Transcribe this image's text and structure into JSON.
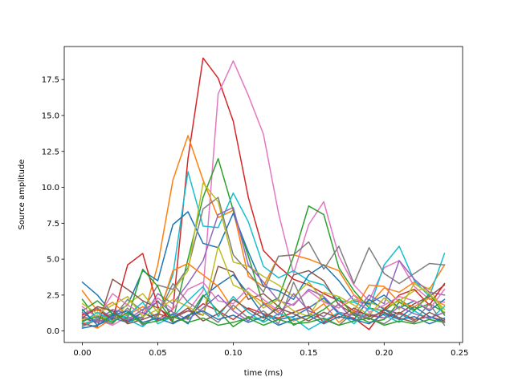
{
  "chart_data": {
    "type": "line",
    "title": "",
    "xlabel": "time (ms)",
    "ylabel": "Source amplitude",
    "xlim": [
      -0.012,
      0.252
    ],
    "ylim": [
      -0.8,
      19.8
    ],
    "grid": false,
    "legend": "none",
    "x_ticks": [
      {
        "value": 0.0,
        "label": "0.00"
      },
      {
        "value": 0.05,
        "label": "0.05"
      },
      {
        "value": 0.1,
        "label": "0.10"
      },
      {
        "value": 0.15,
        "label": "0.15"
      },
      {
        "value": 0.2,
        "label": "0.20"
      },
      {
        "value": 0.25,
        "label": "0.25"
      }
    ],
    "y_ticks": [
      {
        "value": 0.0,
        "label": "0.0"
      },
      {
        "value": 2.5,
        "label": "2.5"
      },
      {
        "value": 5.0,
        "label": "5.0"
      },
      {
        "value": 7.5,
        "label": "7.5"
      },
      {
        "value": 10.0,
        "label": "10.0"
      },
      {
        "value": 12.5,
        "label": "12.5"
      },
      {
        "value": 15.0,
        "label": "15.0"
      },
      {
        "value": 17.5,
        "label": "17.5"
      }
    ],
    "x": [
      0.0,
      0.01,
      0.02,
      0.03,
      0.04,
      0.05,
      0.06,
      0.07,
      0.08,
      0.09,
      0.1,
      0.11,
      0.12,
      0.13,
      0.14,
      0.15,
      0.16,
      0.17,
      0.18,
      0.19,
      0.2,
      0.21,
      0.22,
      0.23,
      0.24
    ],
    "series": [
      {
        "color": "#d62728",
        "values": [
          0.9,
          0.6,
          1.1,
          0.7,
          1.3,
          0.8,
          1.5,
          12.0,
          19.0,
          17.6,
          14.6,
          9.3,
          5.6,
          4.5,
          3.6,
          3.2,
          2.6,
          2.1,
          1.4,
          1.1,
          0.9,
          1.3,
          0.8,
          1.0,
          0.7
        ]
      },
      {
        "color": "#e377c2",
        "values": [
          0.5,
          0.8,
          0.4,
          1.0,
          0.6,
          0.9,
          1.1,
          1.4,
          2.8,
          16.5,
          18.8,
          16.4,
          13.7,
          8.2,
          4.0,
          7.4,
          9.0,
          5.2,
          3.2,
          2.1,
          4.4,
          4.9,
          3.1,
          2.2,
          2.0
        ]
      },
      {
        "color": "#ff7f0e",
        "values": [
          0.6,
          0.2,
          0.9,
          1.2,
          0.8,
          4.6,
          10.5,
          13.6,
          10.5,
          7.9,
          8.4,
          3.8,
          3.1,
          5.2,
          5.3,
          5.0,
          4.6,
          4.2,
          2.5,
          1.8,
          3.0,
          2.7,
          3.4,
          2.9,
          4.6
        ]
      },
      {
        "color": "#2ca02c",
        "values": [
          2.2,
          0.8,
          1.2,
          0.6,
          1.0,
          2.1,
          0.7,
          5.0,
          9.3,
          12.0,
          8.4,
          5.2,
          1.8,
          2.3,
          5.2,
          8.7,
          8.1,
          4.4,
          2.8,
          1.6,
          1.4,
          2.2,
          1.5,
          1.9,
          1.3
        ]
      },
      {
        "color": "#17becf",
        "values": [
          0.4,
          0.9,
          1.4,
          0.8,
          0.3,
          1.2,
          3.9,
          11.1,
          7.3,
          7.2,
          9.6,
          7.6,
          4.5,
          3.7,
          4.2,
          3.5,
          3.2,
          2.1,
          2.0,
          1.5,
          4.6,
          5.9,
          3.5,
          2.4,
          5.4
        ]
      },
      {
        "color": "#1f77b4",
        "values": [
          3.4,
          2.5,
          1.2,
          1.8,
          4.2,
          3.5,
          7.4,
          8.3,
          6.1,
          5.8,
          8.2,
          5.5,
          3.1,
          2.8,
          2.2,
          3.9,
          4.6,
          3.5,
          2.1,
          1.9,
          2.5,
          1.6,
          2.1,
          1.4,
          2.2
        ]
      },
      {
        "color": "#7f7f7f",
        "values": [
          1.2,
          1.6,
          0.9,
          2.2,
          1.4,
          3.2,
          2.9,
          4.4,
          8.5,
          9.3,
          5.3,
          4.1,
          2.7,
          5.2,
          5.3,
          6.2,
          4.3,
          5.9,
          3.3,
          5.8,
          4.0,
          3.3,
          4.0,
          4.7,
          4.6
        ]
      },
      {
        "color": "#bcbd22",
        "values": [
          0.8,
          1.1,
          0.7,
          1.9,
          2.6,
          1.3,
          2.8,
          4.2,
          10.3,
          9.0,
          4.8,
          4.5,
          3.8,
          3.2,
          2.4,
          3.4,
          2.1,
          1.6,
          2.2,
          2.0,
          1.6,
          2.1,
          2.8,
          3.0,
          1.2
        ]
      },
      {
        "color": "#9467bd",
        "values": [
          1.0,
          0.7,
          1.5,
          1.2,
          0.9,
          2.6,
          1.9,
          3.3,
          4.9,
          8.1,
          8.6,
          4.6,
          3.4,
          2.1,
          1.8,
          2.9,
          2.4,
          1.3,
          1.1,
          2.5,
          1.9,
          4.9,
          3.6,
          2.7,
          2.5
        ]
      },
      {
        "color": "#8c564b",
        "values": [
          0.5,
          0.3,
          3.6,
          2.9,
          2.1,
          1.6,
          0.9,
          1.4,
          1.1,
          4.5,
          4.1,
          2.2,
          2.6,
          1.7,
          3.9,
          4.2,
          3.5,
          1.8,
          1.2,
          0.8,
          1.5,
          1.2,
          1.9,
          2.4,
          3.2
        ]
      },
      {
        "color": "#d62728",
        "values": [
          1.1,
          1.5,
          0.8,
          4.6,
          5.4,
          1.7,
          0.6,
          1.0,
          1.9,
          1.4,
          0.8,
          1.6,
          1.2,
          0.9,
          1.3,
          1.7,
          0.6,
          1.2,
          0.9,
          0.1,
          1.5,
          2.5,
          2.9,
          1.8,
          3.3
        ]
      },
      {
        "color": "#1f77b4",
        "values": [
          0.2,
          0.4,
          0.9,
          0.6,
          1.3,
          0.7,
          1.2,
          0.5,
          2.4,
          3.2,
          3.9,
          2.6,
          1.1,
          0.8,
          1.0,
          1.6,
          2.3,
          1.2,
          0.8,
          2.2,
          1.5,
          0.9,
          1.7,
          1.0,
          0.6
        ]
      },
      {
        "color": "#ff7f0e",
        "values": [
          2.8,
          1.4,
          2.0,
          1.1,
          1.7,
          0.9,
          4.2,
          4.7,
          3.9,
          3.1,
          1.5,
          2.6,
          2.0,
          1.3,
          0.7,
          1.1,
          1.9,
          0.6,
          1.4,
          3.2,
          3.1,
          2.0,
          1.7,
          2.3,
          1.8
        ]
      },
      {
        "color": "#2ca02c",
        "values": [
          1.4,
          2.1,
          1.2,
          0.9,
          4.3,
          3.1,
          0.6,
          0.9,
          2.5,
          1.4,
          0.3,
          1.0,
          0.7,
          1.8,
          0.4,
          0.9,
          1.5,
          2.3,
          1.1,
          0.6,
          0.8,
          2.0,
          1.4,
          2.6,
          1.1
        ]
      },
      {
        "color": "#e377c2",
        "values": [
          1.7,
          0.9,
          2.6,
          1.8,
          1.2,
          2.3,
          1.5,
          2.9,
          3.4,
          2.1,
          1.9,
          3.0,
          2.2,
          1.4,
          1.9,
          2.8,
          2.0,
          1.6,
          2.5,
          1.3,
          1.8,
          2.4,
          2.1,
          1.5,
          2.9
        ]
      },
      {
        "color": "#7f7f7f",
        "values": [
          0.3,
          0.8,
          0.5,
          1.6,
          0.4,
          1.1,
          3.3,
          2.0,
          1.3,
          0.6,
          1.8,
          0.9,
          1.4,
          0.5,
          3.4,
          1.2,
          0.8,
          0.4,
          1.3,
          0.9,
          0.5,
          1.2,
          0.7,
          1.9,
          0.4
        ]
      },
      {
        "color": "#bcbd22",
        "values": [
          1.9,
          1.2,
          1.8,
          2.4,
          1.0,
          1.5,
          2.2,
          1.7,
          1.1,
          5.9,
          3.2,
          2.7,
          1.6,
          2.2,
          1.4,
          1.0,
          2.7,
          2.4,
          1.8,
          1.1,
          2.3,
          1.5,
          3.3,
          2.6,
          1.5
        ]
      },
      {
        "color": "#17becf",
        "values": [
          0.6,
          1.3,
          0.7,
          1.1,
          2.0,
          0.5,
          1.0,
          2.1,
          3.1,
          1.0,
          2.4,
          1.3,
          0.6,
          1.2,
          0.9,
          0.1,
          0.7,
          1.3,
          0.5,
          1.6,
          1.1,
          0.6,
          1.4,
          0.8,
          1.7
        ]
      },
      {
        "color": "#9467bd",
        "values": [
          1.3,
          0.6,
          1.0,
          0.8,
          1.5,
          2.0,
          1.3,
          0.8,
          1.6,
          2.5,
          1.4,
          0.7,
          1.9,
          1.1,
          2.6,
          1.4,
          1.0,
          1.9,
          0.7,
          1.2,
          0.9,
          1.7,
          1.2,
          0.9,
          1.3
        ]
      },
      {
        "color": "#8c564b",
        "values": [
          0.9,
          1.7,
          1.4,
          0.5,
          0.8,
          1.2,
          0.9,
          1.6,
          0.7,
          1.2,
          2.2,
          1.5,
          0.9,
          1.6,
          1.2,
          0.7,
          1.3,
          0.9,
          1.6,
          1.0,
          1.3,
          0.9,
          0.6,
          1.3,
          0.8
        ]
      },
      {
        "color": "#1f77b4",
        "values": [
          1.5,
          0.4,
          1.1,
          1.4,
          0.6,
          0.9,
          0.5,
          1.1,
          1.4,
          0.8,
          1.1,
          0.6,
          1.0,
          0.4,
          0.8,
          1.1,
          0.5,
          1.0,
          0.8,
          0.5,
          1.2,
          0.8,
          1.0,
          0.5,
          0.9
        ]
      },
      {
        "color": "#2ca02c",
        "values": [
          0.7,
          1.0,
          0.6,
          1.3,
          0.5,
          0.7,
          1.0,
          0.6,
          0.9,
          0.4,
          0.6,
          0.9,
          0.4,
          0.8,
          0.5,
          0.6,
          0.9,
          0.4,
          0.7,
          0.9,
          0.4,
          0.7,
          0.5,
          0.8,
          0.6
        ]
      }
    ]
  }
}
